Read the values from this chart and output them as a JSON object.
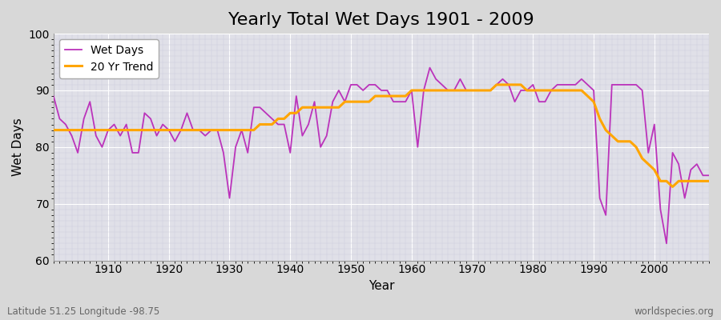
{
  "title": "Yearly Total Wet Days 1901 - 2009",
  "xlabel": "Year",
  "ylabel": "Wet Days",
  "lat_lon_label": "Latitude 51.25 Longitude -98.75",
  "watermark": "worldspecies.org",
  "years": [
    1901,
    1902,
    1903,
    1904,
    1905,
    1906,
    1907,
    1908,
    1909,
    1910,
    1911,
    1912,
    1913,
    1914,
    1915,
    1916,
    1917,
    1918,
    1919,
    1920,
    1921,
    1922,
    1923,
    1924,
    1925,
    1926,
    1927,
    1928,
    1929,
    1930,
    1931,
    1932,
    1933,
    1934,
    1935,
    1936,
    1937,
    1938,
    1939,
    1940,
    1941,
    1942,
    1943,
    1944,
    1945,
    1946,
    1947,
    1948,
    1949,
    1950,
    1951,
    1952,
    1953,
    1954,
    1955,
    1956,
    1957,
    1958,
    1959,
    1960,
    1961,
    1962,
    1963,
    1964,
    1965,
    1966,
    1967,
    1968,
    1969,
    1970,
    1971,
    1972,
    1973,
    1974,
    1975,
    1976,
    1977,
    1978,
    1979,
    1980,
    1981,
    1982,
    1983,
    1984,
    1985,
    1986,
    1987,
    1988,
    1989,
    1990,
    1991,
    1992,
    1993,
    1994,
    1995,
    1996,
    1997,
    1998,
    1999,
    2000,
    2001,
    2002,
    2003,
    2004,
    2005,
    2006,
    2007,
    2008,
    2009
  ],
  "wet_days": [
    89,
    85,
    84,
    82,
    79,
    85,
    88,
    82,
    80,
    83,
    84,
    82,
    84,
    79,
    79,
    86,
    85,
    82,
    84,
    83,
    81,
    83,
    86,
    83,
    83,
    82,
    83,
    83,
    79,
    71,
    80,
    83,
    79,
    87,
    87,
    86,
    85,
    84,
    84,
    79,
    89,
    82,
    84,
    88,
    80,
    82,
    88,
    90,
    88,
    91,
    91,
    90,
    91,
    91,
    90,
    90,
    88,
    88,
    88,
    90,
    80,
    90,
    94,
    92,
    91,
    90,
    90,
    92,
    90,
    90,
    90,
    90,
    90,
    91,
    92,
    91,
    88,
    90,
    90,
    91,
    88,
    88,
    90,
    91,
    91,
    91,
    91,
    92,
    91,
    90,
    71,
    68,
    91,
    91,
    91,
    91,
    91,
    90,
    79,
    84,
    69,
    63,
    79,
    77,
    71,
    76,
    77,
    75,
    75
  ],
  "trend_years": [
    1901,
    1902,
    1903,
    1904,
    1905,
    1906,
    1907,
    1908,
    1909,
    1910,
    1911,
    1912,
    1913,
    1914,
    1915,
    1916,
    1917,
    1918,
    1919,
    1920,
    1921,
    1922,
    1923,
    1924,
    1925,
    1926,
    1927,
    1928,
    1929,
    1930,
    1931,
    1932,
    1933,
    1934,
    1935,
    1936,
    1937,
    1938,
    1939,
    1940,
    1941,
    1942,
    1943,
    1944,
    1945,
    1946,
    1947,
    1948,
    1949,
    1950,
    1951,
    1952,
    1953,
    1954,
    1955,
    1956,
    1957,
    1958,
    1959,
    1960,
    1961,
    1962,
    1963,
    1964,
    1965,
    1966,
    1967,
    1968,
    1969,
    1970,
    1971,
    1972,
    1973,
    1974,
    1975,
    1976,
    1977,
    1978,
    1979,
    1980,
    1981,
    1982,
    1983,
    1984,
    1985,
    1986,
    1987,
    1988,
    1989,
    1990,
    1991,
    1992,
    1993,
    1994,
    1995,
    1996,
    1997,
    1998,
    1999,
    2000,
    2001,
    2002,
    2003,
    2004,
    2005,
    2006,
    2007,
    2008,
    2009
  ],
  "trend_values": [
    83,
    83,
    83,
    83,
    83,
    83,
    83,
    83,
    83,
    83,
    83,
    83,
    83,
    83,
    83,
    83,
    83,
    83,
    83,
    83,
    83,
    83,
    83,
    83,
    83,
    83,
    83,
    83,
    83,
    83,
    83,
    83,
    83,
    83,
    84,
    84,
    84,
    85,
    85,
    86,
    86,
    87,
    87,
    87,
    87,
    87,
    87,
    87,
    88,
    88,
    88,
    88,
    88,
    89,
    89,
    89,
    89,
    89,
    89,
    90,
    90,
    90,
    90,
    90,
    90,
    90,
    90,
    90,
    90,
    90,
    90,
    90,
    90,
    91,
    91,
    91,
    91,
    91,
    90,
    90,
    90,
    90,
    90,
    90,
    90,
    90,
    90,
    90,
    89,
    88,
    85,
    83,
    82,
    81,
    81,
    81,
    80,
    78,
    77,
    76,
    74,
    74,
    73,
    74,
    74,
    74,
    74,
    74,
    74
  ],
  "wet_days_color": "#bb33bb",
  "trend_color": "#ffa500",
  "bg_color": "#d8d8d8",
  "plot_bg_color": "#e0e0e8",
  "ylim": [
    60,
    100
  ],
  "xlim": [
    1901,
    2009
  ],
  "yticks": [
    60,
    70,
    80,
    90,
    100
  ],
  "xticks": [
    1910,
    1920,
    1930,
    1940,
    1950,
    1960,
    1970,
    1980,
    1990,
    2000
  ],
  "title_fontsize": 16,
  "axis_label_fontsize": 11,
  "tick_fontsize": 10,
  "legend_fontsize": 10,
  "grid_color": "#ffffff",
  "grid_minor_color": "#ccccdd"
}
